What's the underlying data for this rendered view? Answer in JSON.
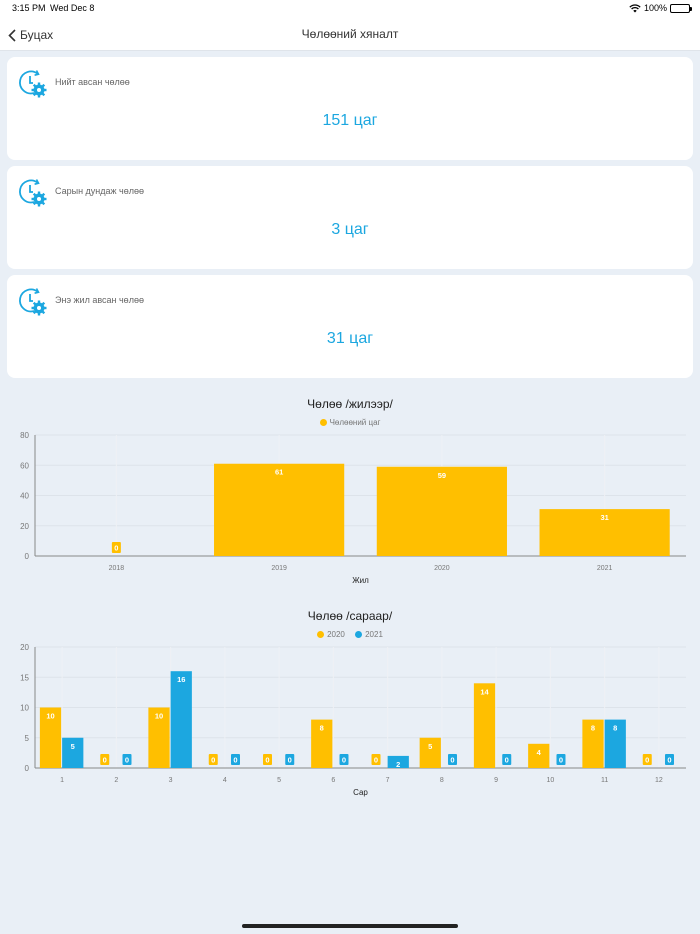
{
  "status_bar": {
    "time": "3:15 PM",
    "date": "Wed Dec 8",
    "battery": "100%",
    "wifi_icon": "wifi-icon",
    "battery_icon": "battery-icon"
  },
  "nav": {
    "back_label": "Буцах",
    "title": "Чөлөөний хяналт"
  },
  "cards": [
    {
      "label": "Нийт авсан чөлөө",
      "value": "151 цаг",
      "icon": "clock-gear-icon"
    },
    {
      "label": "Сарын дундаж чөлөө",
      "value": "3 цаг",
      "icon": "clock-gear-icon"
    },
    {
      "label": "Энэ жил авсан чөлөө",
      "value": "31 цаг",
      "icon": "clock-gear-icon"
    }
  ],
  "colors": {
    "accent": "#1ca7e0",
    "series_2020": "#ffbf00",
    "series_2021": "#1ca7e0"
  },
  "chart_data": [
    {
      "type": "bar",
      "title": "Чөлөө /жилээр/",
      "xlabel": "Жил",
      "ylabel": "",
      "ylim": [
        0,
        80
      ],
      "yticks": [
        "0",
        "20",
        "40",
        "60",
        "80"
      ],
      "categories": [
        "2018",
        "2019",
        "2020",
        "2021"
      ],
      "series": [
        {
          "name": "Чөлөөний цаг",
          "color": "#ffbf00",
          "values": [
            0,
            61,
            59,
            31
          ]
        }
      ],
      "legend": "top"
    },
    {
      "type": "bar",
      "title": "Чөлөө /сараар/",
      "xlabel": "Сар",
      "ylabel": "",
      "ylim": [
        0,
        20
      ],
      "yticks": [
        "0",
        "5",
        "10",
        "15",
        "20"
      ],
      "categories": [
        "1",
        "2",
        "3",
        "4",
        "5",
        "6",
        "7",
        "8",
        "9",
        "10",
        "11",
        "12"
      ],
      "series": [
        {
          "name": "2020",
          "color": "#ffbf00",
          "values": [
            10,
            0,
            10,
            0,
            0,
            8,
            0,
            5,
            14,
            4,
            8,
            0
          ]
        },
        {
          "name": "2021",
          "color": "#1ca7e0",
          "values": [
            5,
            0,
            16,
            0,
            0,
            0,
            2,
            0,
            0,
            0,
            8,
            0
          ]
        }
      ],
      "legend": "top"
    }
  ]
}
